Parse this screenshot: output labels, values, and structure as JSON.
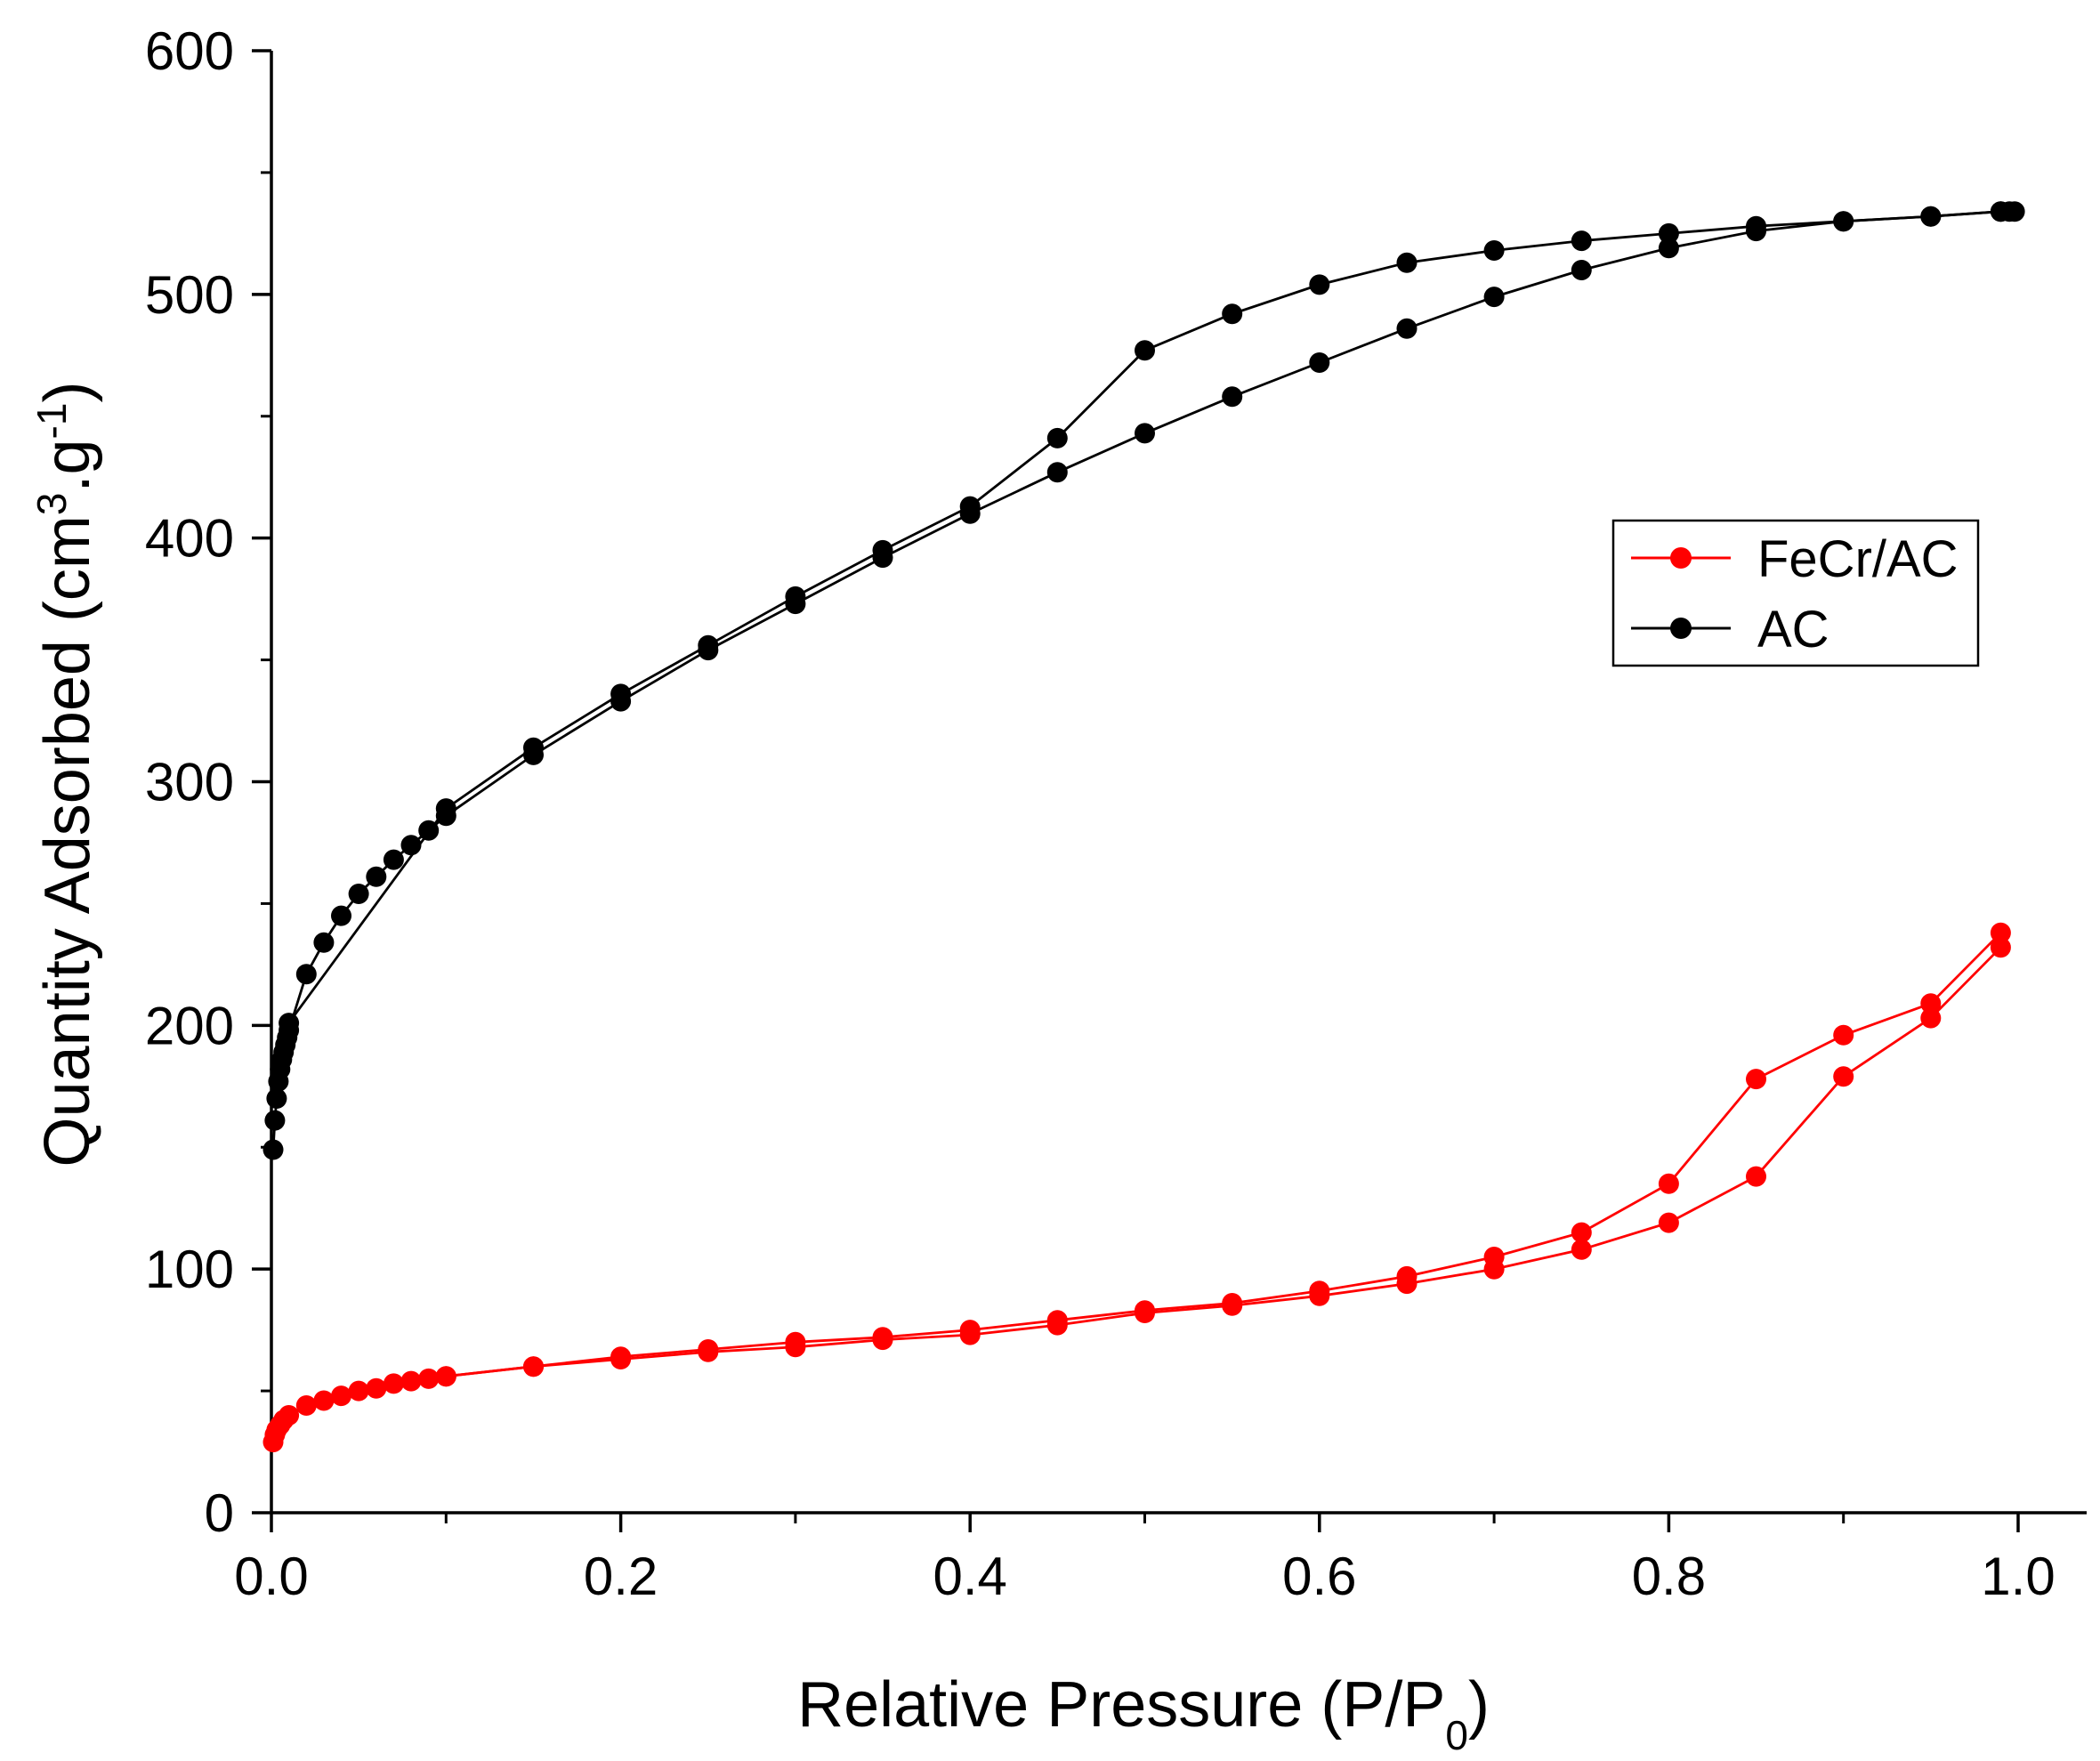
{
  "chart_data": {
    "type": "line",
    "title": "",
    "xlabel": "Relative Pressure (P/P0)",
    "xlabel_parts": {
      "main": "Relative Pressure (P/P",
      "sub": "0",
      "end": ")"
    },
    "ylabel": "Quantity Adsorbed (cm3.g-1)",
    "ylabel_parts": {
      "main": "Quantity Adsorbed (cm",
      "sup1": "3",
      "mid": ".g",
      "sup2": "-1",
      "end": ")"
    },
    "xlim": [
      0.0,
      1.0
    ],
    "ylim": [
      0,
      600
    ],
    "xticks": [
      "0.0",
      "0.2",
      "0.4",
      "0.6",
      "0.8",
      "1.0"
    ],
    "yticks": [
      "0",
      "100",
      "200",
      "300",
      "400",
      "500",
      "600"
    ],
    "legend_position": "right-middle",
    "series": [
      {
        "name": "FeCr/AC",
        "color": "#ff0000",
        "adsorption": {
          "x": [
            0.001,
            0.002,
            0.003,
            0.005,
            0.007,
            0.01,
            0.02,
            0.03,
            0.04,
            0.05,
            0.06,
            0.07,
            0.08,
            0.09,
            0.1,
            0.15,
            0.2,
            0.25,
            0.3,
            0.35,
            0.4,
            0.45,
            0.5,
            0.55,
            0.6,
            0.65,
            0.7,
            0.75,
            0.8,
            0.85,
            0.9,
            0.95,
            0.99
          ],
          "y": [
            29,
            32,
            34,
            36,
            38,
            40,
            44,
            46,
            48,
            50,
            51,
            53,
            54,
            55,
            56,
            60,
            63,
            66,
            68,
            71,
            73,
            77,
            82,
            85,
            89,
            94,
            100,
            108,
            119,
            138,
            179,
            203,
            232
          ]
        },
        "desorption": {
          "x": [
            0.99,
            0.95,
            0.9,
            0.85,
            0.8,
            0.75,
            0.7,
            0.65,
            0.6,
            0.55,
            0.5,
            0.45,
            0.4,
            0.35,
            0.3,
            0.25,
            0.2,
            0.15,
            0.1
          ],
          "y": [
            238,
            209,
            196,
            178,
            135,
            115,
            105,
            97,
            91,
            86,
            83,
            79,
            75,
            72,
            70,
            67,
            64,
            60,
            56
          ]
        }
      },
      {
        "name": "AC",
        "color": "#000000",
        "adsorption": {
          "x": [
            0.001,
            0.002,
            0.003,
            0.004,
            0.005,
            0.006,
            0.007,
            0.008,
            0.009,
            0.01,
            0.02,
            0.03,
            0.04,
            0.05,
            0.06,
            0.07,
            0.08,
            0.09,
            0.1,
            0.15,
            0.2,
            0.25,
            0.3,
            0.35,
            0.4,
            0.45,
            0.5,
            0.55,
            0.6,
            0.65,
            0.7,
            0.75,
            0.8,
            0.85,
            0.9,
            0.95,
            0.99,
            0.995
          ],
          "y": [
            149,
            161,
            170,
            177,
            182,
            186,
            189,
            192,
            195,
            198,
            221,
            234,
            245,
            254,
            261,
            268,
            274,
            280,
            286,
            311,
            333,
            354,
            373,
            392,
            410,
            427,
            443,
            458,
            472,
            486,
            499,
            510,
            519,
            526,
            530,
            532,
            534,
            534
          ]
        },
        "desorption": {
          "x": [
            0.998,
            0.99,
            0.95,
            0.9,
            0.85,
            0.8,
            0.75,
            0.7,
            0.65,
            0.6,
            0.55,
            0.5,
            0.45,
            0.4,
            0.35,
            0.3,
            0.25,
            0.2,
            0.15,
            0.1,
            0.01
          ],
          "y": [
            534,
            534,
            532,
            530,
            528,
            525,
            522,
            518,
            513,
            504,
            492,
            477,
            441,
            413,
            395,
            376,
            356,
            336,
            314,
            289,
            201
          ]
        }
      }
    ]
  }
}
